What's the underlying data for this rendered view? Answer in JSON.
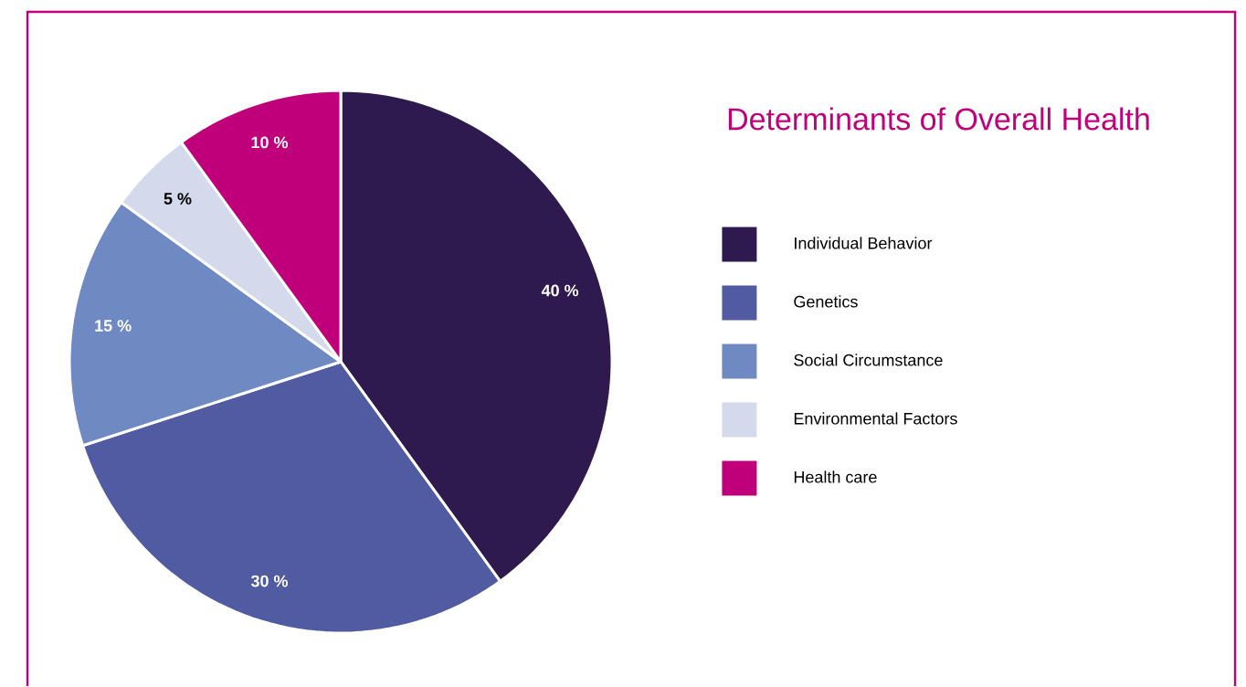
{
  "chart_data": {
    "type": "pie",
    "title": "Determinants of Overall Health",
    "categories": [
      "Individual Behavior",
      "Genetics",
      "Social Circumstance",
      "Environmental Factors",
      "Health care"
    ],
    "values": [
      40,
      30,
      15,
      5,
      10
    ],
    "colors": [
      "#2e1a4f",
      "#505ba2",
      "#6f89c3",
      "#d5d9ec",
      "#c0007a"
    ],
    "value_labels": [
      "40 %",
      "30 %",
      "15 %",
      "5 %",
      "10 %"
    ],
    "legend": "right"
  }
}
